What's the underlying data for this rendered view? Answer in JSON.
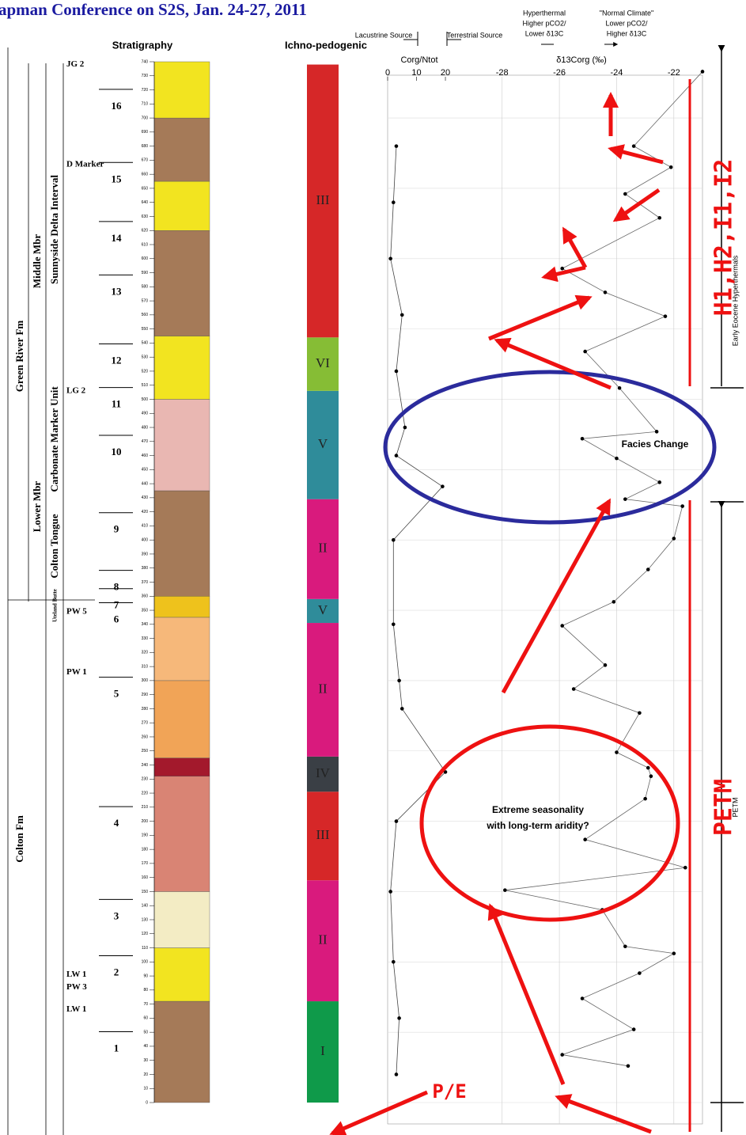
{
  "title": "apman Conference on S2S, Jan. 24-27, 2011",
  "headers": {
    "stratigraphy": "Stratigraphy",
    "ichno": "Ichno-pedogenic",
    "lacustrine": "Lacustrine Source",
    "terrestrial": "Terrestrial Source",
    "hyperthermal": [
      "Hyperthermal",
      "Higher pCO2/",
      "Lower δ13C"
    ],
    "normal": [
      "\"Normal Climate\"",
      "Lower pCO2/",
      "Higher δ13C"
    ],
    "right_upper": "Early Eocene Hyperthermals",
    "right_lower": "PETM"
  },
  "annotations": {
    "facies": "Facies Change",
    "seasonality": [
      "Extreme seasonality",
      "with long-term aridity?"
    ],
    "hyperthermals": "H1,H2,I1,I2",
    "petm": "PETM",
    "pe": "P/E"
  },
  "stratigraphy": {
    "formations": [
      "Green River Fm",
      "Colton Fm",
      "Middle Mbr",
      "Lower Mbr",
      "Sunnyside Delta Interval",
      "Carbonate Marker Unit",
      "Colton Tongue",
      "Uteland Butte"
    ],
    "units": [
      {
        "label": "1",
        "depth": 38
      },
      {
        "label": "2",
        "depth": 92
      },
      {
        "label": "3",
        "depth": 132
      },
      {
        "label": "4",
        "depth": 198
      },
      {
        "label": "5",
        "depth": 290
      },
      {
        "label": "6",
        "depth": 343
      },
      {
        "label": "7",
        "depth": 353
      },
      {
        "label": "8",
        "depth": 366
      },
      {
        "label": "9",
        "depth": 407
      },
      {
        "label": "10",
        "depth": 462
      },
      {
        "label": "11",
        "depth": 496
      },
      {
        "label": "12",
        "depth": 527
      },
      {
        "label": "13",
        "depth": 576
      },
      {
        "label": "14",
        "depth": 614
      },
      {
        "label": "15",
        "depth": 656
      },
      {
        "label": "16",
        "depth": 708
      }
    ],
    "markers": [
      {
        "label": "JG 2",
        "depth": 738
      },
      {
        "label": "D Marker",
        "depth": 667
      },
      {
        "label": "LG 2",
        "depth": 506
      },
      {
        "label": "PW 5",
        "depth": 349
      },
      {
        "label": "PW 1",
        "depth": 306
      },
      {
        "label": "LW 1",
        "depth": 91
      },
      {
        "label": "PW 3",
        "depth": 82
      },
      {
        "label": "LW 1",
        "depth": 66
      }
    ],
    "lithology": [
      {
        "from": 0,
        "to": 72,
        "color": "#a57a58"
      },
      {
        "from": 72,
        "to": 110,
        "color": "#f2e420"
      },
      {
        "from": 110,
        "to": 150,
        "color": "#f3ecc4"
      },
      {
        "from": 150,
        "to": 232,
        "color": "#d98474"
      },
      {
        "from": 232,
        "to": 245,
        "color": "#a3192c"
      },
      {
        "from": 245,
        "to": 300,
        "color": "#f1a457"
      },
      {
        "from": 300,
        "to": 345,
        "color": "#f6b87a"
      },
      {
        "from": 345,
        "to": 360,
        "color": "#eec21c"
      },
      {
        "from": 360,
        "to": 435,
        "color": "#a57a58"
      },
      {
        "from": 435,
        "to": 500,
        "color": "#e9b7b2"
      },
      {
        "from": 500,
        "to": 545,
        "color": "#f2e420"
      },
      {
        "from": 545,
        "to": 620,
        "color": "#a57a58"
      },
      {
        "from": 620,
        "to": 655,
        "color": "#f2e420"
      },
      {
        "from": 655,
        "to": 700,
        "color": "#a57a58"
      },
      {
        "from": 700,
        "to": 740,
        "color": "#f2e420"
      }
    ],
    "pedogenic": [
      {
        "label": "I",
        "color": "#0f9a4a",
        "from": 0,
        "to": 72
      },
      {
        "label": "II",
        "color": "#d91a7d",
        "from": 72,
        "to": 158
      },
      {
        "label": "III",
        "color": "#d62728",
        "from": 158,
        "to": 221
      },
      {
        "label": "IV",
        "color": "#3a3f45",
        "from": 221,
        "to": 246
      },
      {
        "label": "II",
        "color": "#d91a7d",
        "from": 246,
        "to": 341
      },
      {
        "label": "V",
        "color": "#2f8c9a",
        "from": 341,
        "to": 358
      },
      {
        "label": "II",
        "color": "#d91a7d",
        "from": 358,
        "to": 429
      },
      {
        "label": "V",
        "color": "#2f8c9a",
        "from": 429,
        "to": 506
      },
      {
        "label": "VI",
        "color": "#86bd35",
        "from": 506,
        "to": 544
      },
      {
        "label": "III",
        "color": "#d62728",
        "from": 544,
        "to": 738
      }
    ]
  },
  "chart_data": [
    {
      "type": "line",
      "x_label": "δ13Corg (‰)",
      "xlim": [
        -32,
        -21
      ],
      "xticks": [
        -28,
        -26,
        -24,
        -22
      ],
      "ylim": [
        0,
        740
      ],
      "yticks": [
        0,
        10,
        20,
        30,
        40,
        50,
        60,
        70,
        80,
        90,
        100,
        110,
        120,
        130,
        140,
        150,
        160,
        170,
        180,
        190,
        200,
        210,
        220,
        230,
        240,
        250,
        260,
        270,
        280,
        290,
        300,
        310,
        320,
        330,
        340,
        350,
        360,
        370,
        380,
        390,
        400,
        410,
        420,
        430,
        440,
        450,
        460,
        470,
        480,
        490,
        500,
        510,
        520,
        530,
        540,
        550,
        560,
        570,
        580,
        590,
        600,
        610,
        620,
        630,
        640,
        650,
        660,
        670,
        680,
        690,
        700,
        710,
        720,
        730,
        740
      ],
      "series": [
        {
          "color": "#666666",
          "depths": [
            26,
            34,
            52,
            74,
            92,
            106,
            111,
            137,
            151,
            167,
            187,
            216,
            232,
            238,
            249,
            277,
            294,
            311,
            339,
            356,
            379,
            401,
            424,
            429,
            441,
            458,
            472,
            477,
            508,
            534,
            559,
            576,
            593,
            629,
            646,
            665,
            680,
            733
          ],
          "values": [
            -23.6,
            -25.9,
            -23.4,
            -25.2,
            -23.2,
            -22.0,
            -23.7,
            -24.5,
            -27.9,
            -21.6,
            -25.1,
            -23.0,
            -22.8,
            -22.9,
            -24.0,
            -23.2,
            -25.5,
            -24.4,
            -25.9,
            -24.1,
            -22.9,
            -22.0,
            -21.7,
            -23.7,
            -22.5,
            -24.0,
            -25.2,
            -22.6,
            -23.9,
            -25.1,
            -22.3,
            -24.4,
            -25.9,
            -22.5,
            -23.7,
            -22.1,
            -23.4,
            -21.0
          ]
        }
      ]
    },
    {
      "type": "line",
      "x_label": "Corg/Ntot",
      "xlim": [
        0,
        109
      ],
      "xticks": [
        0,
        10,
        20
      ],
      "ylim": [
        0,
        740
      ],
      "series": [
        {
          "color": "#444444",
          "depths": [
            20,
            60,
            100,
            150,
            200,
            235,
            280,
            300,
            340,
            400,
            438,
            460,
            480,
            520,
            560,
            600,
            640,
            680
          ],
          "values": [
            3,
            4,
            2,
            1,
            3,
            20,
            5,
            4,
            2,
            2,
            19,
            3,
            6,
            3,
            5,
            1,
            2,
            3
          ]
        }
      ]
    }
  ]
}
